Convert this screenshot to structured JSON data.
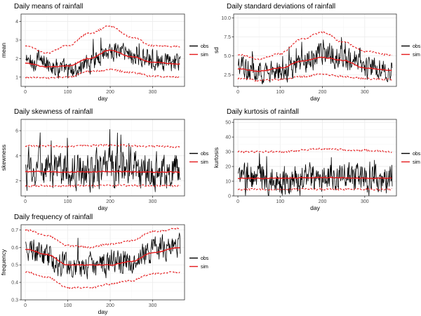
{
  "legend": {
    "obs": "obs",
    "sim": "sim"
  },
  "colors": {
    "obs": "#000000",
    "sim": "#e41a1c",
    "grid": "#ebebeb"
  },
  "chart_data": [
    {
      "id": "mean",
      "type": "line",
      "title": "Daily means of rainfall",
      "xlabel": "day",
      "ylabel": "mean",
      "xlim": [
        -10,
        375
      ],
      "ylim": [
        0.5,
        4.4
      ],
      "xticks": [
        0,
        100,
        200,
        300
      ],
      "yticks": [
        1,
        2,
        3,
        4
      ],
      "yfmt": 0,
      "obs_envelope": {
        "x": [
          0,
          40,
          80,
          110,
          150,
          195,
          230,
          270,
          320,
          365
        ],
        "y": [
          1.85,
          1.75,
          1.5,
          1.3,
          1.75,
          2.4,
          2.4,
          2.0,
          1.8,
          1.7
        ]
      },
      "obs_noise": 0.45,
      "series": [
        {
          "name": "sim",
          "style": "solid",
          "x": [
            0,
            50,
            100,
            150,
            200,
            250,
            300,
            365
          ],
          "y": [
            1.75,
            1.55,
            1.6,
            2.0,
            2.45,
            2.1,
            1.8,
            1.7
          ]
        },
        {
          "name": "sim upper",
          "style": "dashed",
          "x": [
            0,
            50,
            100,
            150,
            200,
            250,
            300,
            365
          ],
          "y": [
            2.7,
            2.3,
            2.7,
            3.35,
            3.75,
            3.15,
            2.7,
            2.65
          ]
        },
        {
          "name": "sim lower",
          "style": "dashed",
          "x": [
            0,
            50,
            100,
            150,
            200,
            250,
            300,
            365
          ],
          "y": [
            1.0,
            0.95,
            1.0,
            1.3,
            1.4,
            1.25,
            1.05,
            1.0
          ]
        }
      ]
    },
    {
      "id": "sd",
      "type": "line",
      "title": "Daily standard deviations of rainfall",
      "xlabel": "day",
      "ylabel": "sd",
      "xlim": [
        -10,
        375
      ],
      "ylim": [
        1.0,
        10.5
      ],
      "xticks": [
        0,
        100,
        200,
        300
      ],
      "yticks": [
        2.5,
        5.0,
        7.5,
        10.0
      ],
      "yfmt": 1,
      "obs_envelope": {
        "x": [
          0,
          40,
          80,
          120,
          160,
          200,
          240,
          280,
          320,
          365
        ],
        "y": [
          3.3,
          3.0,
          2.7,
          3.3,
          4.3,
          5.3,
          5.0,
          4.0,
          3.3,
          3.1
        ]
      },
      "obs_noise": 1.3,
      "series": [
        {
          "name": "sim",
          "style": "solid",
          "x": [
            0,
            50,
            100,
            150,
            200,
            250,
            300,
            365
          ],
          "y": [
            3.3,
            3.0,
            3.4,
            4.3,
            4.8,
            4.4,
            3.4,
            3.1
          ]
        },
        {
          "name": "sim upper",
          "style": "dashed",
          "x": [
            0,
            50,
            100,
            150,
            200,
            250,
            300,
            365
          ],
          "y": [
            5.2,
            4.6,
            5.3,
            7.2,
            8.1,
            6.8,
            5.6,
            5.1
          ]
        },
        {
          "name": "sim lower",
          "style": "dashed",
          "x": [
            0,
            50,
            100,
            150,
            200,
            250,
            300,
            365
          ],
          "y": [
            2.0,
            1.8,
            1.9,
            2.3,
            2.6,
            2.3,
            2.0,
            1.9
          ]
        }
      ]
    },
    {
      "id": "skewness",
      "type": "line",
      "title": "Daily skewness of rainfall",
      "xlabel": "day",
      "ylabel": "skewness",
      "xlim": [
        -10,
        375
      ],
      "ylim": [
        0.8,
        6.9
      ],
      "xticks": [
        0,
        100,
        200,
        300
      ],
      "yticks": [
        2,
        4,
        6
      ],
      "yfmt": 0,
      "obs_envelope": {
        "x": [
          0,
          100,
          200,
          300,
          365
        ],
        "y": [
          2.8,
          2.8,
          2.8,
          2.8,
          2.8
        ]
      },
      "obs_noise": 1.25,
      "series": [
        {
          "name": "sim",
          "style": "solid",
          "x": [
            0,
            100,
            200,
            300,
            365
          ],
          "y": [
            2.75,
            2.7,
            2.75,
            2.7,
            2.7
          ]
        },
        {
          "name": "sim upper",
          "style": "dashed",
          "x": [
            0,
            100,
            200,
            300,
            365
          ],
          "y": [
            4.8,
            4.75,
            4.85,
            4.75,
            4.7
          ]
        },
        {
          "name": "sim lower",
          "style": "dashed",
          "x": [
            0,
            100,
            200,
            300,
            365
          ],
          "y": [
            1.6,
            1.6,
            1.65,
            1.6,
            1.6
          ]
        }
      ]
    },
    {
      "id": "kurtosis",
      "type": "line",
      "title": "Daily kurtosis of rainfall",
      "xlabel": "day",
      "ylabel": "kurtosis",
      "xlim": [
        -10,
        375
      ],
      "ylim": [
        0,
        52
      ],
      "xticks": [
        0,
        100,
        200,
        300
      ],
      "yticks": [
        0,
        10,
        20,
        30,
        40,
        50
      ],
      "yfmt": 0,
      "obs_envelope": {
        "x": [
          0,
          100,
          200,
          300,
          365
        ],
        "y": [
          11,
          11,
          12,
          11,
          11
        ]
      },
      "obs_noise": 9,
      "series": [
        {
          "name": "sim",
          "style": "solid",
          "x": [
            0,
            100,
            200,
            300,
            365
          ],
          "y": [
            12,
            12,
            12.5,
            12,
            12
          ]
        },
        {
          "name": "sim upper",
          "style": "dashed",
          "x": [
            0,
            100,
            200,
            300,
            365
          ],
          "y": [
            30,
            30,
            32,
            31,
            30
          ]
        },
        {
          "name": "sim lower",
          "style": "dashed",
          "x": [
            0,
            100,
            200,
            300,
            365
          ],
          "y": [
            4.5,
            4.5,
            4.5,
            4.5,
            4.5
          ]
        }
      ]
    },
    {
      "id": "frequency",
      "type": "line",
      "title": "Daily frequency of rainfall",
      "xlabel": "day",
      "ylabel": "frequency",
      "xlim": [
        -10,
        375
      ],
      "ylim": [
        0.3,
        0.73
      ],
      "xticks": [
        0,
        100,
        200,
        300
      ],
      "yticks": [
        0.3,
        0.4,
        0.5,
        0.6,
        0.7
      ],
      "yfmt": 1,
      "obs_envelope": {
        "x": [
          0,
          40,
          80,
          120,
          160,
          200,
          240,
          280,
          320,
          365
        ],
        "y": [
          0.6,
          0.56,
          0.5,
          0.49,
          0.5,
          0.5,
          0.52,
          0.55,
          0.6,
          0.6
        ]
      },
      "obs_noise": 0.06,
      "series": [
        {
          "name": "sim",
          "style": "solid",
          "x": [
            0,
            50,
            100,
            150,
            200,
            250,
            300,
            365
          ],
          "y": [
            0.59,
            0.56,
            0.5,
            0.5,
            0.5,
            0.52,
            0.57,
            0.6
          ]
        },
        {
          "name": "sim upper",
          "style": "dashed",
          "x": [
            0,
            50,
            100,
            150,
            200,
            250,
            300,
            365
          ],
          "y": [
            0.7,
            0.67,
            0.61,
            0.6,
            0.62,
            0.64,
            0.69,
            0.71
          ]
        },
        {
          "name": "sim lower",
          "style": "dashed",
          "x": [
            0,
            50,
            100,
            150,
            200,
            250,
            300,
            365
          ],
          "y": [
            0.46,
            0.43,
            0.37,
            0.37,
            0.39,
            0.41,
            0.45,
            0.46
          ]
        }
      ]
    }
  ]
}
